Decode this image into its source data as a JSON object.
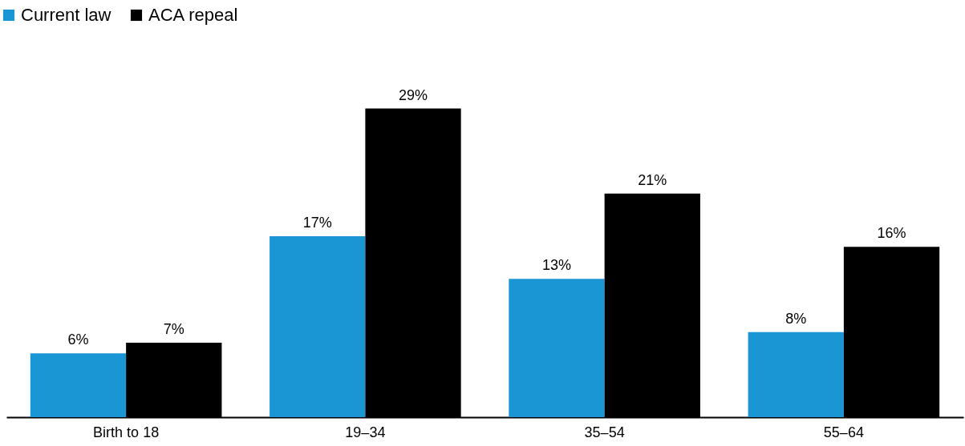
{
  "chart_data": {
    "type": "bar",
    "categories": [
      "Birth to 18",
      "19–34",
      "35–54",
      "55–64"
    ],
    "series": [
      {
        "name": "Current law",
        "color": "#1a96d4",
        "values": [
          6,
          17,
          13,
          8
        ],
        "value_labels": [
          "6%",
          "17%",
          "13%",
          "8%"
        ]
      },
      {
        "name": "ACA repeal",
        "color": "#000000",
        "values": [
          7,
          29,
          21,
          16
        ],
        "value_labels": [
          "7%",
          "29%",
          "21%",
          "16%"
        ]
      }
    ],
    "legend": "top left",
    "grid": false
  }
}
